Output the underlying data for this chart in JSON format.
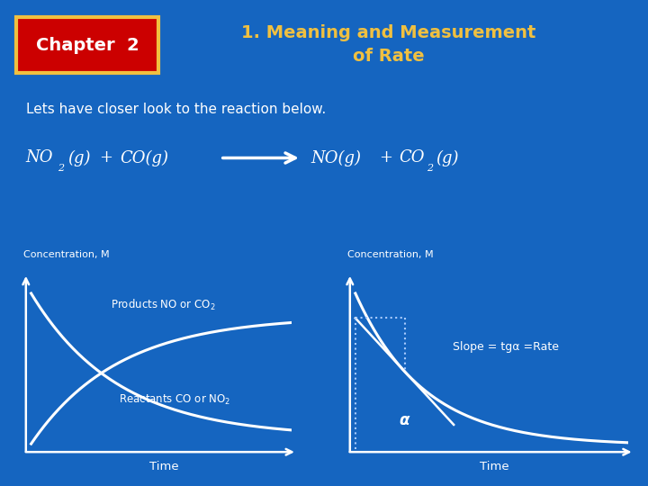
{
  "bg_color": "#1565c0",
  "chapter_box_color": "#cc0000",
  "chapter_text": "Chapter  2",
  "title_text": "1. Meaning and Measurement\nof Rate",
  "subtitle_text": "Lets have closer look to the reaction below.",
  "ylabel_left": "Concentration, M",
  "ylabel_right": "Concentration, M",
  "xlabel_left": "Time",
  "xlabel_right": "Time",
  "label_products": "Products NO or CO",
  "label_reactants": "Reactants CO or NO",
  "slope_label": "Slope = tgα =Rate",
  "alpha_label": "α",
  "curve_color": "#ffffff",
  "text_color": "#ffffff",
  "yellow_color": "#f0c040",
  "chapter_label_color": "#ffffff",
  "dotted_color": "#aaccff"
}
